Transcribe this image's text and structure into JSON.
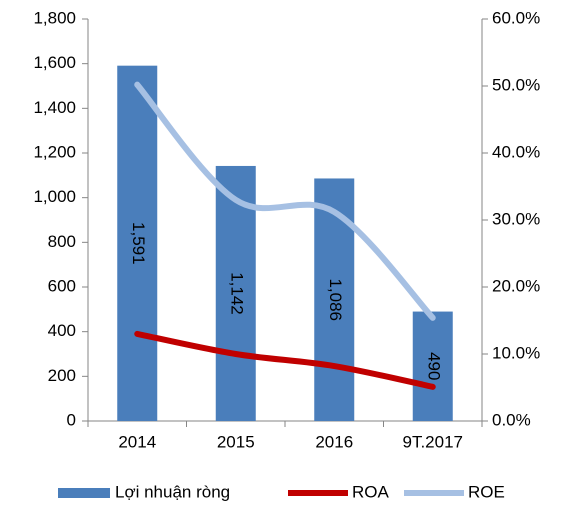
{
  "chart_data": {
    "type": "bar",
    "categories": [
      "2014",
      "2015",
      "2016",
      "9T.2017"
    ],
    "series": [
      {
        "name": "Lợi nhuận ròng",
        "type": "bar",
        "color": "#4a7ebb",
        "values": [
          1591,
          1142,
          1086,
          490
        ],
        "value_labels": [
          "1,591",
          "1,142",
          "1,086",
          "490"
        ]
      },
      {
        "name": "ROA",
        "type": "line",
        "axis": "y2",
        "color": "#c00000",
        "values": [
          13.0,
          10.0,
          8.2,
          5.1
        ]
      },
      {
        "name": "ROE",
        "type": "line",
        "axis": "y2",
        "color": "#a6c0e3",
        "values": [
          50.2,
          33.0,
          31.2,
          15.4
        ]
      }
    ],
    "ylim": [
      0,
      1800
    ],
    "yticks": [
      0,
      200,
      400,
      600,
      800,
      {
        "value": 1000,
        "label": "1,000"
      },
      {
        "value": 1200,
        "label": "1,200"
      },
      {
        "value": 1400,
        "label": "1,400"
      },
      {
        "value": 1600,
        "label": "1,600"
      },
      {
        "value": 1800,
        "label": "1,800"
      }
    ],
    "y2lim": [
      0,
      60
    ],
    "y2ticks": [
      {
        "value": 0,
        "label": "0.0%"
      },
      {
        "value": 10,
        "label": "10.0%"
      },
      {
        "value": 20,
        "label": "20.0%"
      },
      {
        "value": 30,
        "label": "30.0%"
      },
      {
        "value": 40,
        "label": "40.0%"
      },
      {
        "value": 50,
        "label": "50.0%"
      },
      {
        "value": 60,
        "label": "60.0%"
      }
    ],
    "grid": false,
    "legend": "bottom"
  }
}
